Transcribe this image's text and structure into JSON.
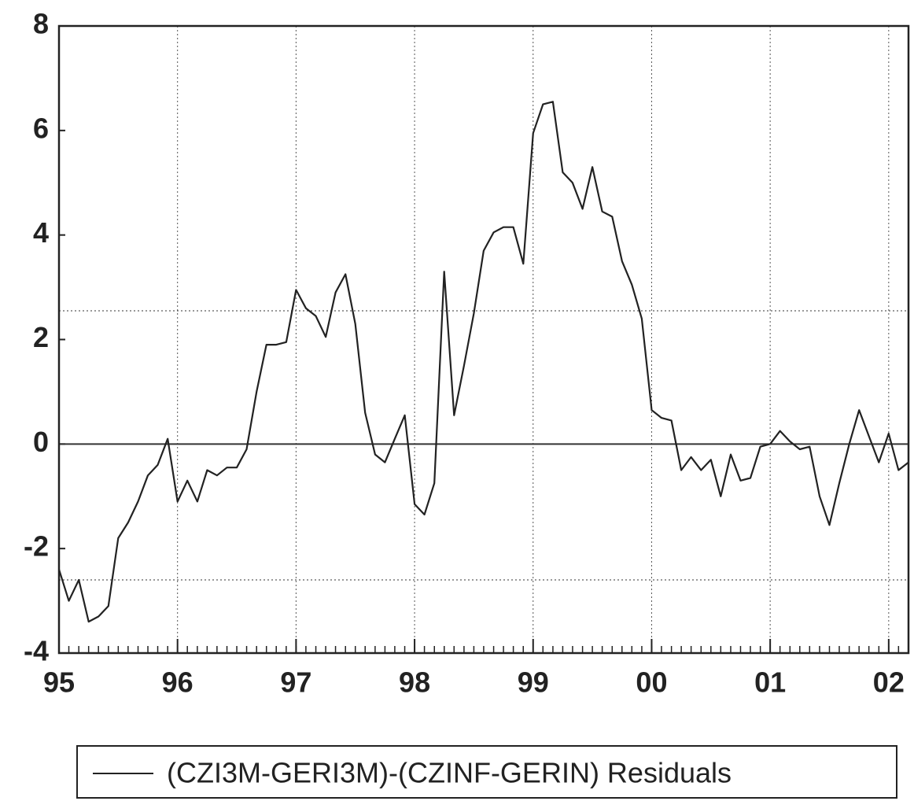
{
  "chart_data": {
    "type": "line",
    "x": [
      1995,
      1995.083,
      1995.167,
      1995.25,
      1995.333,
      1995.417,
      1995.5,
      1995.583,
      1995.667,
      1995.75,
      1995.833,
      1995.917,
      1996,
      1996.083,
      1996.167,
      1996.25,
      1996.333,
      1996.417,
      1996.5,
      1996.583,
      1996.667,
      1996.75,
      1996.833,
      1996.917,
      1997,
      1997.083,
      1997.167,
      1997.25,
      1997.333,
      1997.417,
      1997.5,
      1997.583,
      1997.667,
      1997.75,
      1997.833,
      1997.917,
      1998,
      1998.083,
      1998.167,
      1998.25,
      1998.333,
      1998.417,
      1998.5,
      1998.583,
      1998.667,
      1998.75,
      1998.833,
      1998.917,
      1999,
      1999.083,
      1999.167,
      1999.25,
      1999.333,
      1999.417,
      1999.5,
      1999.583,
      1999.667,
      1999.75,
      1999.833,
      1999.917,
      2000,
      2000.083,
      2000.167,
      2000.25,
      2000.333,
      2000.417,
      2000.5,
      2000.583,
      2000.667,
      2000.75,
      2000.833,
      2000.917,
      2001,
      2001.083,
      2001.167,
      2001.25,
      2001.333,
      2001.417,
      2001.5,
      2001.583,
      2001.667,
      2001.75,
      2001.833,
      2001.917,
      2002,
      2002.083,
      2002.167
    ],
    "series": [
      {
        "name": "(CZI3M-GERI3M)-(CZINF-GERIN) Residuals",
        "color": "#222222",
        "values": [
          -2.4,
          -3.0,
          -2.6,
          -3.4,
          -3.3,
          -3.1,
          -1.8,
          -1.5,
          -1.1,
          -0.6,
          -0.4,
          0.1,
          -1.1,
          -0.7,
          -1.1,
          -0.5,
          -0.6,
          -0.45,
          -0.45,
          -0.1,
          1.0,
          1.9,
          1.9,
          1.95,
          2.95,
          2.6,
          2.45,
          2.05,
          2.9,
          3.25,
          2.3,
          0.6,
          -0.2,
          -0.35,
          0.1,
          0.55,
          -1.15,
          -1.35,
          -0.75,
          3.3,
          0.55,
          1.5,
          2.5,
          3.7,
          4.05,
          4.15,
          4.15,
          3.45,
          5.95,
          6.5,
          6.55,
          5.2,
          5.0,
          4.5,
          5.3,
          4.45,
          4.35,
          3.5,
          3.05,
          2.4,
          0.65,
          0.5,
          0.45,
          -0.5,
          -0.25,
          -0.5,
          -0.3,
          -1.0,
          -0.2,
          -0.7,
          -0.65,
          -0.05,
          0.0,
          0.25,
          0.05,
          -0.1,
          -0.05,
          -1.0,
          -1.55,
          -0.75,
          0.0,
          0.65,
          0.15,
          -0.35,
          0.2,
          -0.5,
          -0.35
        ]
      }
    ],
    "xlim": [
      1995,
      2002.167
    ],
    "xticks": [
      {
        "value": 1995,
        "label": "95"
      },
      {
        "value": 1996,
        "label": "96"
      },
      {
        "value": 1997,
        "label": "97"
      },
      {
        "value": 1998,
        "label": "98"
      },
      {
        "value": 1999,
        "label": "99"
      },
      {
        "value": 2000,
        "label": "00"
      },
      {
        "value": 2001,
        "label": "01"
      },
      {
        "value": 2002,
        "label": "02"
      }
    ],
    "ylim": [
      -4,
      8
    ],
    "yticks": [
      -4,
      -2,
      0,
      2,
      4,
      6,
      8
    ],
    "hlines": [
      {
        "value": 0,
        "style": "solid"
      },
      {
        "value": 2.55,
        "style": "dotted"
      },
      {
        "value": -2.6,
        "style": "dotted"
      }
    ],
    "grid": true
  }
}
